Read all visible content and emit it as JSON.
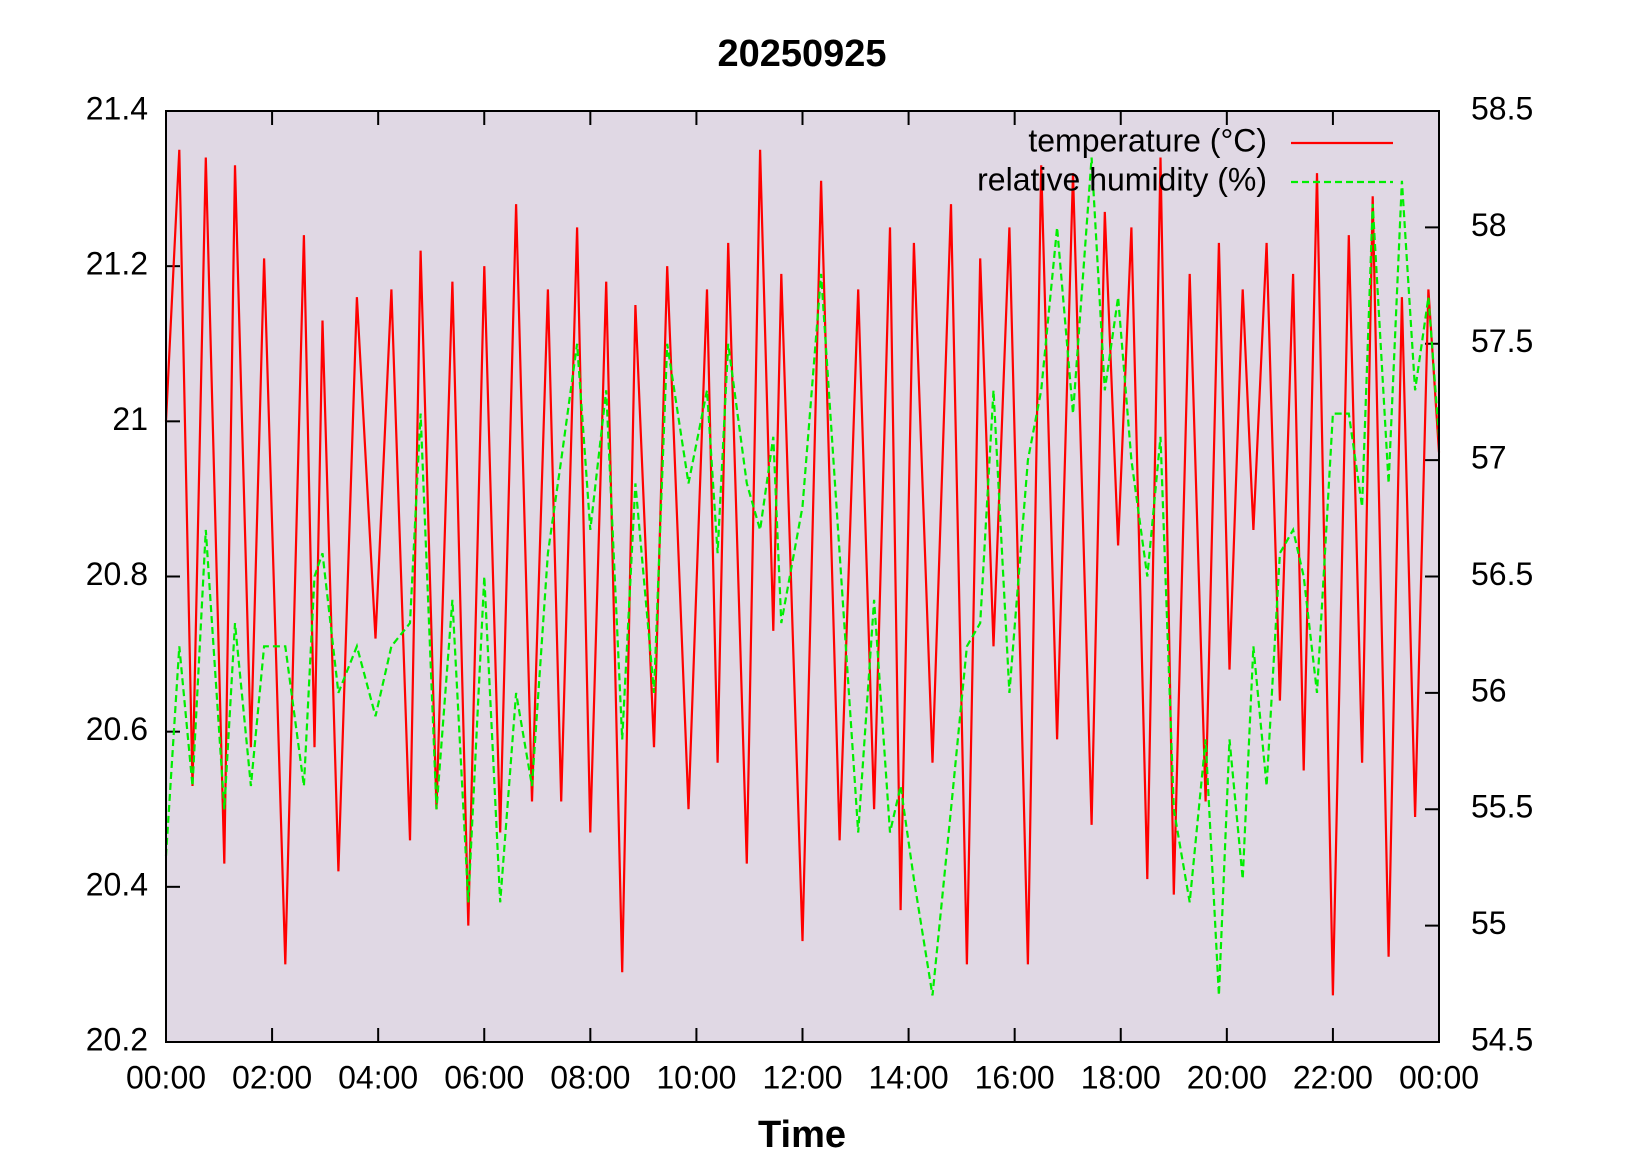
{
  "chart_data": {
    "type": "line",
    "title": "20250925",
    "xlabel": "Time",
    "x": [
      0,
      0.25,
      0.5,
      0.75,
      1.1,
      1.3,
      1.6,
      1.85,
      2.25,
      2.6,
      2.8,
      2.95,
      3.25,
      3.6,
      3.95,
      4.25,
      4.6,
      4.8,
      5.1,
      5.4,
      5.7,
      6.0,
      6.3,
      6.6,
      6.9,
      7.2,
      7.45,
      7.75,
      8.0,
      8.3,
      8.6,
      8.85,
      9.2,
      9.45,
      9.85,
      10.2,
      10.4,
      10.6,
      10.95,
      11.2,
      11.45,
      11.6,
      12.0,
      12.35,
      12.7,
      13.05,
      13.35,
      13.65,
      13.85,
      14.1,
      14.45,
      14.8,
      15.1,
      15.35,
      15.6,
      15.9,
      16.25,
      16.5,
      16.8,
      17.1,
      17.45,
      17.7,
      17.95,
      18.2,
      18.5,
      18.75,
      19.0,
      19.3,
      19.6,
      19.85,
      20.05,
      20.3,
      20.5,
      20.75,
      21.0,
      21.25,
      21.45,
      21.7,
      22.0,
      22.3,
      22.55,
      22.75,
      23.05,
      23.3,
      23.55,
      23.8,
      24.0
    ],
    "series": [
      {
        "name": "temperature (°C)",
        "color": "#ff0000",
        "line_style": "solid",
        "values": [
          21.0,
          21.35,
          20.53,
          21.34,
          20.43,
          21.33,
          20.58,
          21.21,
          20.3,
          21.24,
          20.58,
          21.13,
          20.42,
          21.16,
          20.72,
          21.17,
          20.46,
          21.22,
          20.5,
          21.18,
          20.35,
          21.2,
          20.47,
          21.28,
          20.51,
          21.17,
          20.51,
          21.25,
          20.47,
          21.18,
          20.29,
          21.15,
          20.58,
          21.2,
          20.5,
          21.17,
          20.56,
          21.23,
          20.43,
          21.35,
          20.73,
          21.19,
          20.33,
          21.31,
          20.46,
          21.17,
          20.5,
          21.25,
          20.37,
          21.23,
          20.56,
          21.28,
          20.3,
          21.21,
          20.71,
          21.25,
          20.3,
          21.33,
          20.59,
          21.32,
          20.48,
          21.27,
          20.84,
          21.25,
          20.41,
          21.34,
          20.39,
          21.19,
          20.51,
          21.23,
          20.68,
          21.17,
          20.86,
          21.23,
          20.64,
          21.19,
          20.55,
          21.32,
          20.26,
          21.24,
          20.56,
          21.29,
          20.31,
          21.16,
          20.49,
          21.17,
          20.96
        ]
      },
      {
        "name": "relative humidity (%)",
        "color": "#00ee00",
        "line_style": "dashed",
        "axis": "y2",
        "values": [
          55.3,
          56.2,
          55.6,
          56.7,
          55.5,
          56.3,
          55.6,
          56.2,
          56.2,
          55.6,
          56.5,
          56.6,
          56.0,
          56.2,
          55.9,
          56.2,
          56.3,
          57.2,
          55.5,
          56.4,
          55.1,
          56.5,
          55.1,
          56.0,
          55.6,
          56.6,
          57.0,
          57.5,
          56.7,
          57.3,
          55.8,
          56.9,
          56.0,
          57.5,
          56.9,
          57.3,
          56.6,
          57.5,
          56.9,
          56.7,
          57.1,
          56.3,
          56.8,
          57.8,
          56.6,
          55.4,
          56.4,
          55.4,
          55.6,
          55.2,
          54.7,
          55.5,
          56.2,
          56.3,
          57.3,
          56.0,
          57.0,
          57.3,
          58.0,
          57.2,
          58.3,
          57.3,
          57.7,
          57.0,
          56.5,
          57.1,
          55.5,
          55.1,
          55.8,
          54.7,
          55.8,
          55.2,
          56.2,
          55.6,
          56.6,
          56.7,
          56.5,
          56.0,
          57.2,
          57.2,
          56.8,
          58.1,
          56.9,
          58.2,
          57.3,
          57.7,
          57.1
        ]
      }
    ],
    "xlim": [
      0,
      24
    ],
    "xticks": [
      {
        "value": 0,
        "label": "00:00"
      },
      {
        "value": 2,
        "label": "02:00"
      },
      {
        "value": 4,
        "label": "04:00"
      },
      {
        "value": 6,
        "label": "06:00"
      },
      {
        "value": 8,
        "label": "08:00"
      },
      {
        "value": 10,
        "label": "10:00"
      },
      {
        "value": 12,
        "label": "12:00"
      },
      {
        "value": 14,
        "label": "14:00"
      },
      {
        "value": 16,
        "label": "16:00"
      },
      {
        "value": 18,
        "label": "18:00"
      },
      {
        "value": 20,
        "label": "20:00"
      },
      {
        "value": 22,
        "label": "22:00"
      },
      {
        "value": 24,
        "label": "00:00"
      }
    ],
    "ylim": [
      20.2,
      21.4
    ],
    "yticks": [
      20.2,
      20.4,
      20.6,
      20.8,
      21,
      21.2,
      21.4
    ],
    "y2lim": [
      54.5,
      58.5
    ],
    "y2ticks": [
      54.5,
      55,
      55.5,
      56,
      56.5,
      57,
      57.5,
      58,
      58.5
    ],
    "plot_background": "#e0d8e4",
    "legend": "top-right"
  }
}
